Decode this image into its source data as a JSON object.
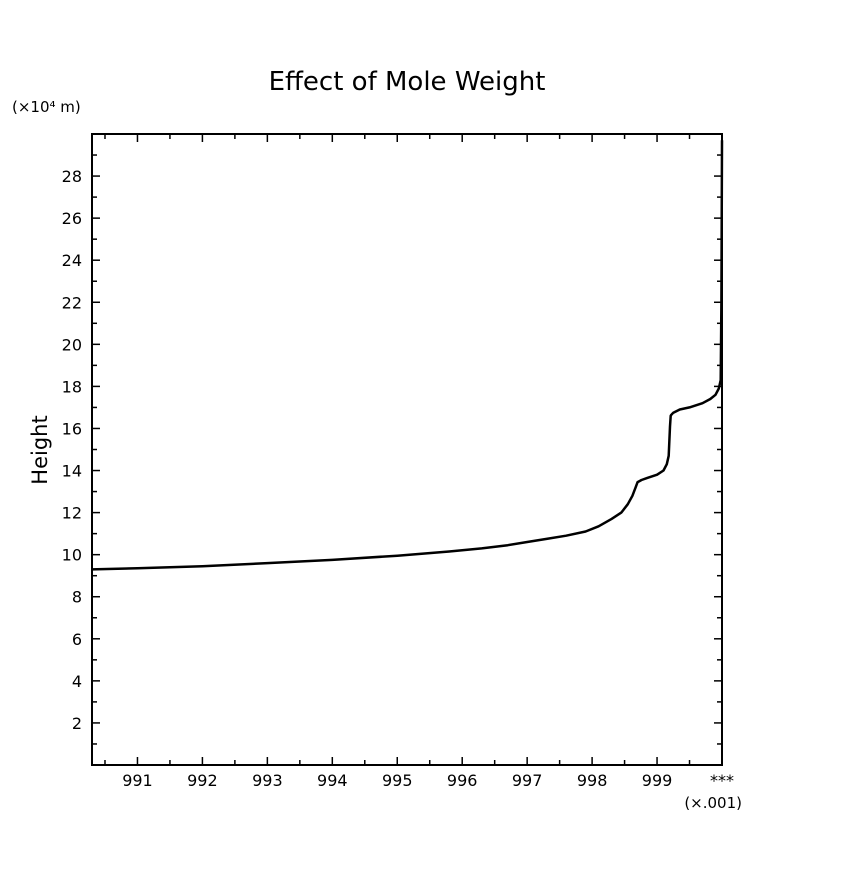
{
  "chart_data": {
    "type": "line",
    "title": "Effect of Mole Weight",
    "ylabel": "Height",
    "xlabel": "",
    "y_unit_label": "(×10⁴ m)",
    "x_unit_label": "(×.001)",
    "x_overflow_tick_label": "***",
    "xlim": [
      990.3,
      1000.0
    ],
    "ylim": [
      0,
      30
    ],
    "x_ticks": [
      991,
      992,
      993,
      994,
      995,
      996,
      997,
      998,
      999
    ],
    "y_ticks": [
      2,
      4,
      6,
      8,
      10,
      12,
      14,
      16,
      18,
      20,
      22,
      24,
      26,
      28
    ],
    "grid": false,
    "series": [
      {
        "x": [
          990.3,
          991.0,
          992.0,
          993.0,
          994.0,
          995.0,
          995.8,
          996.3,
          996.7,
          997.0,
          997.3,
          997.6,
          997.9,
          998.1,
          998.3,
          998.45,
          998.55,
          998.62,
          998.67,
          998.7,
          998.73,
          998.76,
          998.85,
          999.0,
          999.1,
          999.15,
          999.18,
          999.2,
          999.21,
          999.22,
          999.25,
          999.35,
          999.5,
          999.7,
          999.82,
          999.9,
          999.95,
          999.98,
          999.99,
          1000.0
        ],
        "y": [
          9.3,
          9.35,
          9.45,
          9.6,
          9.75,
          9.95,
          10.15,
          10.3,
          10.45,
          10.6,
          10.75,
          10.9,
          11.1,
          11.35,
          11.7,
          12.0,
          12.4,
          12.8,
          13.2,
          13.45,
          13.5,
          13.55,
          13.65,
          13.8,
          14.0,
          14.3,
          14.7,
          16.1,
          16.6,
          16.65,
          16.75,
          16.9,
          17.0,
          17.2,
          17.4,
          17.6,
          17.9,
          18.3,
          22.0,
          29.7
        ]
      }
    ]
  }
}
